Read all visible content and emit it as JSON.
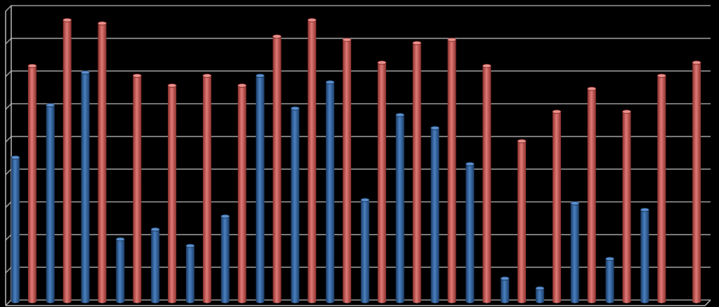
{
  "chart_data": {
    "type": "bar",
    "title": "",
    "xlabel": "",
    "ylabel": "",
    "categories": [
      "",
      "",
      "",
      "",
      "",
      "",
      "",
      "",
      "",
      "",
      "",
      "",
      "",
      "",
      "",
      "",
      "",
      "",
      "",
      ""
    ],
    "ylim": [
      0,
      9
    ],
    "grid": true,
    "legend": "none",
    "series": [
      {
        "color": "#2e5f9a",
        "values": [
          4.4,
          6.0,
          7.0,
          1.9,
          2.2,
          1.7,
          2.6,
          6.9,
          5.9,
          6.7,
          3.1,
          5.7,
          5.3,
          4.2,
          0.7,
          0.4,
          3.0,
          1.3,
          2.8,
          0.0
        ]
      },
      {
        "color": "#c0504d",
        "values": [
          7.2,
          8.6,
          8.5,
          6.9,
          6.6,
          6.9,
          6.6,
          8.1,
          8.6,
          8.0,
          7.3,
          7.9,
          8.0,
          7.2,
          4.9,
          5.8,
          6.5,
          5.8,
          6.9,
          7.3
        ]
      }
    ]
  }
}
